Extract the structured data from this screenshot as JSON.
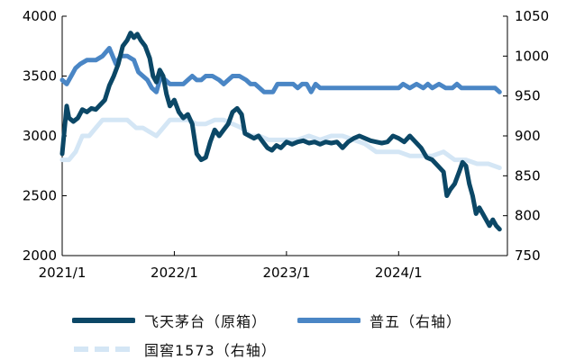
{
  "chart_data": {
    "type": "line",
    "x_range": [
      2021.0,
      2024.97
    ],
    "x_ticks": [
      {
        "x": 2021.0,
        "label": "2021/1"
      },
      {
        "x": 2022.0,
        "label": "2022/1"
      },
      {
        "x": 2023.0,
        "label": "2023/1"
      },
      {
        "x": 2024.0,
        "label": "2024/1"
      }
    ],
    "y_left": {
      "min": 2000,
      "max": 4000,
      "ticks": [
        2000,
        2500,
        3000,
        3500,
        4000
      ]
    },
    "y_right": {
      "min": 750,
      "max": 1050,
      "ticks": [
        750,
        800,
        850,
        900,
        950,
        1000,
        1050
      ]
    },
    "grid": false,
    "legend_position": "bottom",
    "colors": {
      "feitian": "#0b4766",
      "puwu": "#4a86c5",
      "guojiao": "#d4e6f5"
    },
    "series": [
      {
        "key": "feitian",
        "name": "飞天茅台（原箱）",
        "axis": "left",
        "points": [
          [
            2021.0,
            2850
          ],
          [
            2021.02,
            3050
          ],
          [
            2021.04,
            3250
          ],
          [
            2021.06,
            3150
          ],
          [
            2021.1,
            3120
          ],
          [
            2021.14,
            3150
          ],
          [
            2021.18,
            3220
          ],
          [
            2021.22,
            3200
          ],
          [
            2021.26,
            3230
          ],
          [
            2021.3,
            3220
          ],
          [
            2021.34,
            3260
          ],
          [
            2021.38,
            3300
          ],
          [
            2021.42,
            3420
          ],
          [
            2021.46,
            3500
          ],
          [
            2021.5,
            3600
          ],
          [
            2021.54,
            3750
          ],
          [
            2021.58,
            3800
          ],
          [
            2021.61,
            3860
          ],
          [
            2021.64,
            3820
          ],
          [
            2021.67,
            3850
          ],
          [
            2021.7,
            3800
          ],
          [
            2021.74,
            3750
          ],
          [
            2021.78,
            3650
          ],
          [
            2021.81,
            3500
          ],
          [
            2021.84,
            3450
          ],
          [
            2021.87,
            3550
          ],
          [
            2021.9,
            3500
          ],
          [
            2021.93,
            3350
          ],
          [
            2021.96,
            3250
          ],
          [
            2022.0,
            3300
          ],
          [
            2022.04,
            3200
          ],
          [
            2022.08,
            3150
          ],
          [
            2022.12,
            3180
          ],
          [
            2022.16,
            3100
          ],
          [
            2022.2,
            2850
          ],
          [
            2022.24,
            2800
          ],
          [
            2022.28,
            2820
          ],
          [
            2022.32,
            2950
          ],
          [
            2022.36,
            3050
          ],
          [
            2022.4,
            3000
          ],
          [
            2022.44,
            3050
          ],
          [
            2022.48,
            3100
          ],
          [
            2022.52,
            3200
          ],
          [
            2022.56,
            3230
          ],
          [
            2022.6,
            3180
          ],
          [
            2022.63,
            3020
          ],
          [
            2022.67,
            3000
          ],
          [
            2022.71,
            2980
          ],
          [
            2022.75,
            3000
          ],
          [
            2022.79,
            2950
          ],
          [
            2022.83,
            2900
          ],
          [
            2022.87,
            2880
          ],
          [
            2022.91,
            2920
          ],
          [
            2022.95,
            2900
          ],
          [
            2023.0,
            2950
          ],
          [
            2023.05,
            2930
          ],
          [
            2023.1,
            2950
          ],
          [
            2023.15,
            2960
          ],
          [
            2023.2,
            2940
          ],
          [
            2023.25,
            2950
          ],
          [
            2023.3,
            2930
          ],
          [
            2023.35,
            2950
          ],
          [
            2023.4,
            2940
          ],
          [
            2023.45,
            2950
          ],
          [
            2023.5,
            2900
          ],
          [
            2023.55,
            2950
          ],
          [
            2023.6,
            2980
          ],
          [
            2023.65,
            3000
          ],
          [
            2023.7,
            2980
          ],
          [
            2023.75,
            2960
          ],
          [
            2023.8,
            2950
          ],
          [
            2023.85,
            2940
          ],
          [
            2023.9,
            2950
          ],
          [
            2023.95,
            3000
          ],
          [
            2024.0,
            2980
          ],
          [
            2024.05,
            2950
          ],
          [
            2024.1,
            3000
          ],
          [
            2024.15,
            2950
          ],
          [
            2024.2,
            2900
          ],
          [
            2024.25,
            2820
          ],
          [
            2024.3,
            2800
          ],
          [
            2024.35,
            2750
          ],
          [
            2024.4,
            2700
          ],
          [
            2024.43,
            2500
          ],
          [
            2024.46,
            2550
          ],
          [
            2024.5,
            2600
          ],
          [
            2024.54,
            2700
          ],
          [
            2024.57,
            2780
          ],
          [
            2024.6,
            2750
          ],
          [
            2024.63,
            2600
          ],
          [
            2024.66,
            2500
          ],
          [
            2024.69,
            2350
          ],
          [
            2024.72,
            2400
          ],
          [
            2024.75,
            2350
          ],
          [
            2024.78,
            2300
          ],
          [
            2024.81,
            2250
          ],
          [
            2024.84,
            2300
          ],
          [
            2024.87,
            2250
          ],
          [
            2024.9,
            2220
          ]
        ]
      },
      {
        "key": "puwu",
        "name": "普五（右轴）",
        "axis": "right",
        "points": [
          [
            2021.0,
            970
          ],
          [
            2021.04,
            965
          ],
          [
            2021.08,
            975
          ],
          [
            2021.12,
            985
          ],
          [
            2021.16,
            990
          ],
          [
            2021.22,
            995
          ],
          [
            2021.3,
            995
          ],
          [
            2021.36,
            1000
          ],
          [
            2021.42,
            1010
          ],
          [
            2021.48,
            990
          ],
          [
            2021.52,
            1000
          ],
          [
            2021.58,
            1000
          ],
          [
            2021.64,
            995
          ],
          [
            2021.68,
            980
          ],
          [
            2021.72,
            975
          ],
          [
            2021.76,
            970
          ],
          [
            2021.8,
            960
          ],
          [
            2021.84,
            955
          ],
          [
            2021.88,
            975
          ],
          [
            2021.92,
            970
          ],
          [
            2021.96,
            965
          ],
          [
            2022.0,
            965
          ],
          [
            2022.08,
            965
          ],
          [
            2022.12,
            970
          ],
          [
            2022.16,
            975
          ],
          [
            2022.2,
            970
          ],
          [
            2022.24,
            970
          ],
          [
            2022.28,
            975
          ],
          [
            2022.34,
            975
          ],
          [
            2022.4,
            970
          ],
          [
            2022.44,
            965
          ],
          [
            2022.48,
            970
          ],
          [
            2022.52,
            975
          ],
          [
            2022.58,
            975
          ],
          [
            2022.64,
            970
          ],
          [
            2022.68,
            965
          ],
          [
            2022.72,
            965
          ],
          [
            2022.76,
            960
          ],
          [
            2022.8,
            955
          ],
          [
            2022.84,
            955
          ],
          [
            2022.88,
            955
          ],
          [
            2022.92,
            965
          ],
          [
            2022.96,
            965
          ],
          [
            2023.0,
            965
          ],
          [
            2023.06,
            965
          ],
          [
            2023.1,
            960
          ],
          [
            2023.14,
            965
          ],
          [
            2023.18,
            965
          ],
          [
            2023.22,
            955
          ],
          [
            2023.26,
            965
          ],
          [
            2023.3,
            960
          ],
          [
            2023.34,
            960
          ],
          [
            2023.4,
            960
          ],
          [
            2023.5,
            960
          ],
          [
            2023.6,
            960
          ],
          [
            2023.7,
            960
          ],
          [
            2023.8,
            960
          ],
          [
            2023.9,
            960
          ],
          [
            2024.0,
            960
          ],
          [
            2024.04,
            965
          ],
          [
            2024.1,
            960
          ],
          [
            2024.16,
            965
          ],
          [
            2024.22,
            960
          ],
          [
            2024.26,
            965
          ],
          [
            2024.3,
            960
          ],
          [
            2024.36,
            965
          ],
          [
            2024.42,
            960
          ],
          [
            2024.48,
            960
          ],
          [
            2024.52,
            965
          ],
          [
            2024.56,
            960
          ],
          [
            2024.6,
            960
          ],
          [
            2024.7,
            960
          ],
          [
            2024.8,
            960
          ],
          [
            2024.86,
            960
          ],
          [
            2024.9,
            955
          ]
        ]
      },
      {
        "key": "guojiao",
        "name": "国窖1573（右轴）",
        "axis": "right",
        "points": [
          [
            2021.0,
            870
          ],
          [
            2021.06,
            870
          ],
          [
            2021.12,
            880
          ],
          [
            2021.18,
            900
          ],
          [
            2021.24,
            900
          ],
          [
            2021.3,
            910
          ],
          [
            2021.36,
            920
          ],
          [
            2021.42,
            920
          ],
          [
            2021.5,
            920
          ],
          [
            2021.58,
            920
          ],
          [
            2021.66,
            910
          ],
          [
            2021.72,
            910
          ],
          [
            2021.78,
            905
          ],
          [
            2021.84,
            900
          ],
          [
            2021.9,
            910
          ],
          [
            2021.96,
            920
          ],
          [
            2022.04,
            920
          ],
          [
            2022.12,
            920
          ],
          [
            2022.2,
            915
          ],
          [
            2022.28,
            915
          ],
          [
            2022.36,
            920
          ],
          [
            2022.44,
            920
          ],
          [
            2022.52,
            915
          ],
          [
            2022.6,
            910
          ],
          [
            2022.68,
            900
          ],
          [
            2022.76,
            900
          ],
          [
            2022.84,
            895
          ],
          [
            2022.92,
            895
          ],
          [
            2023.0,
            895
          ],
          [
            2023.1,
            895
          ],
          [
            2023.2,
            900
          ],
          [
            2023.3,
            895
          ],
          [
            2023.4,
            900
          ],
          [
            2023.5,
            900
          ],
          [
            2023.6,
            895
          ],
          [
            2023.7,
            890
          ],
          [
            2023.8,
            880
          ],
          [
            2023.9,
            880
          ],
          [
            2024.0,
            880
          ],
          [
            2024.1,
            875
          ],
          [
            2024.2,
            875
          ],
          [
            2024.3,
            875
          ],
          [
            2024.4,
            880
          ],
          [
            2024.5,
            870
          ],
          [
            2024.6,
            870
          ],
          [
            2024.7,
            865
          ],
          [
            2024.8,
            865
          ],
          [
            2024.9,
            860
          ]
        ]
      }
    ]
  }
}
